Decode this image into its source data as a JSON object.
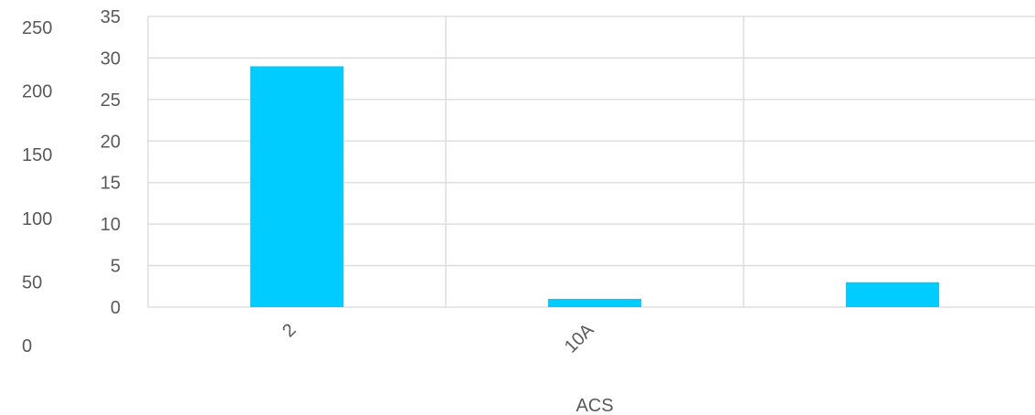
{
  "chart_data": {
    "type": "bar",
    "categories": [
      "2",
      "10A",
      ""
    ],
    "series": [
      {
        "values": [
          29,
          1,
          3
        ]
      }
    ],
    "xlabel": "ACS",
    "ylabel": "",
    "ylim": [
      0,
      35
    ],
    "y_ticks": [
      "0",
      "5",
      "10",
      "15",
      "20",
      "25",
      "30",
      "35"
    ],
    "secondary_y_ticks": [
      "0",
      "50",
      "100",
      "150",
      "200",
      "250"
    ],
    "secondary_ylim": [
      0,
      250
    ],
    "grid": true,
    "bar_color": "#00CCFF",
    "grid_color": "#D9D9D9",
    "text_color": "#595959"
  }
}
